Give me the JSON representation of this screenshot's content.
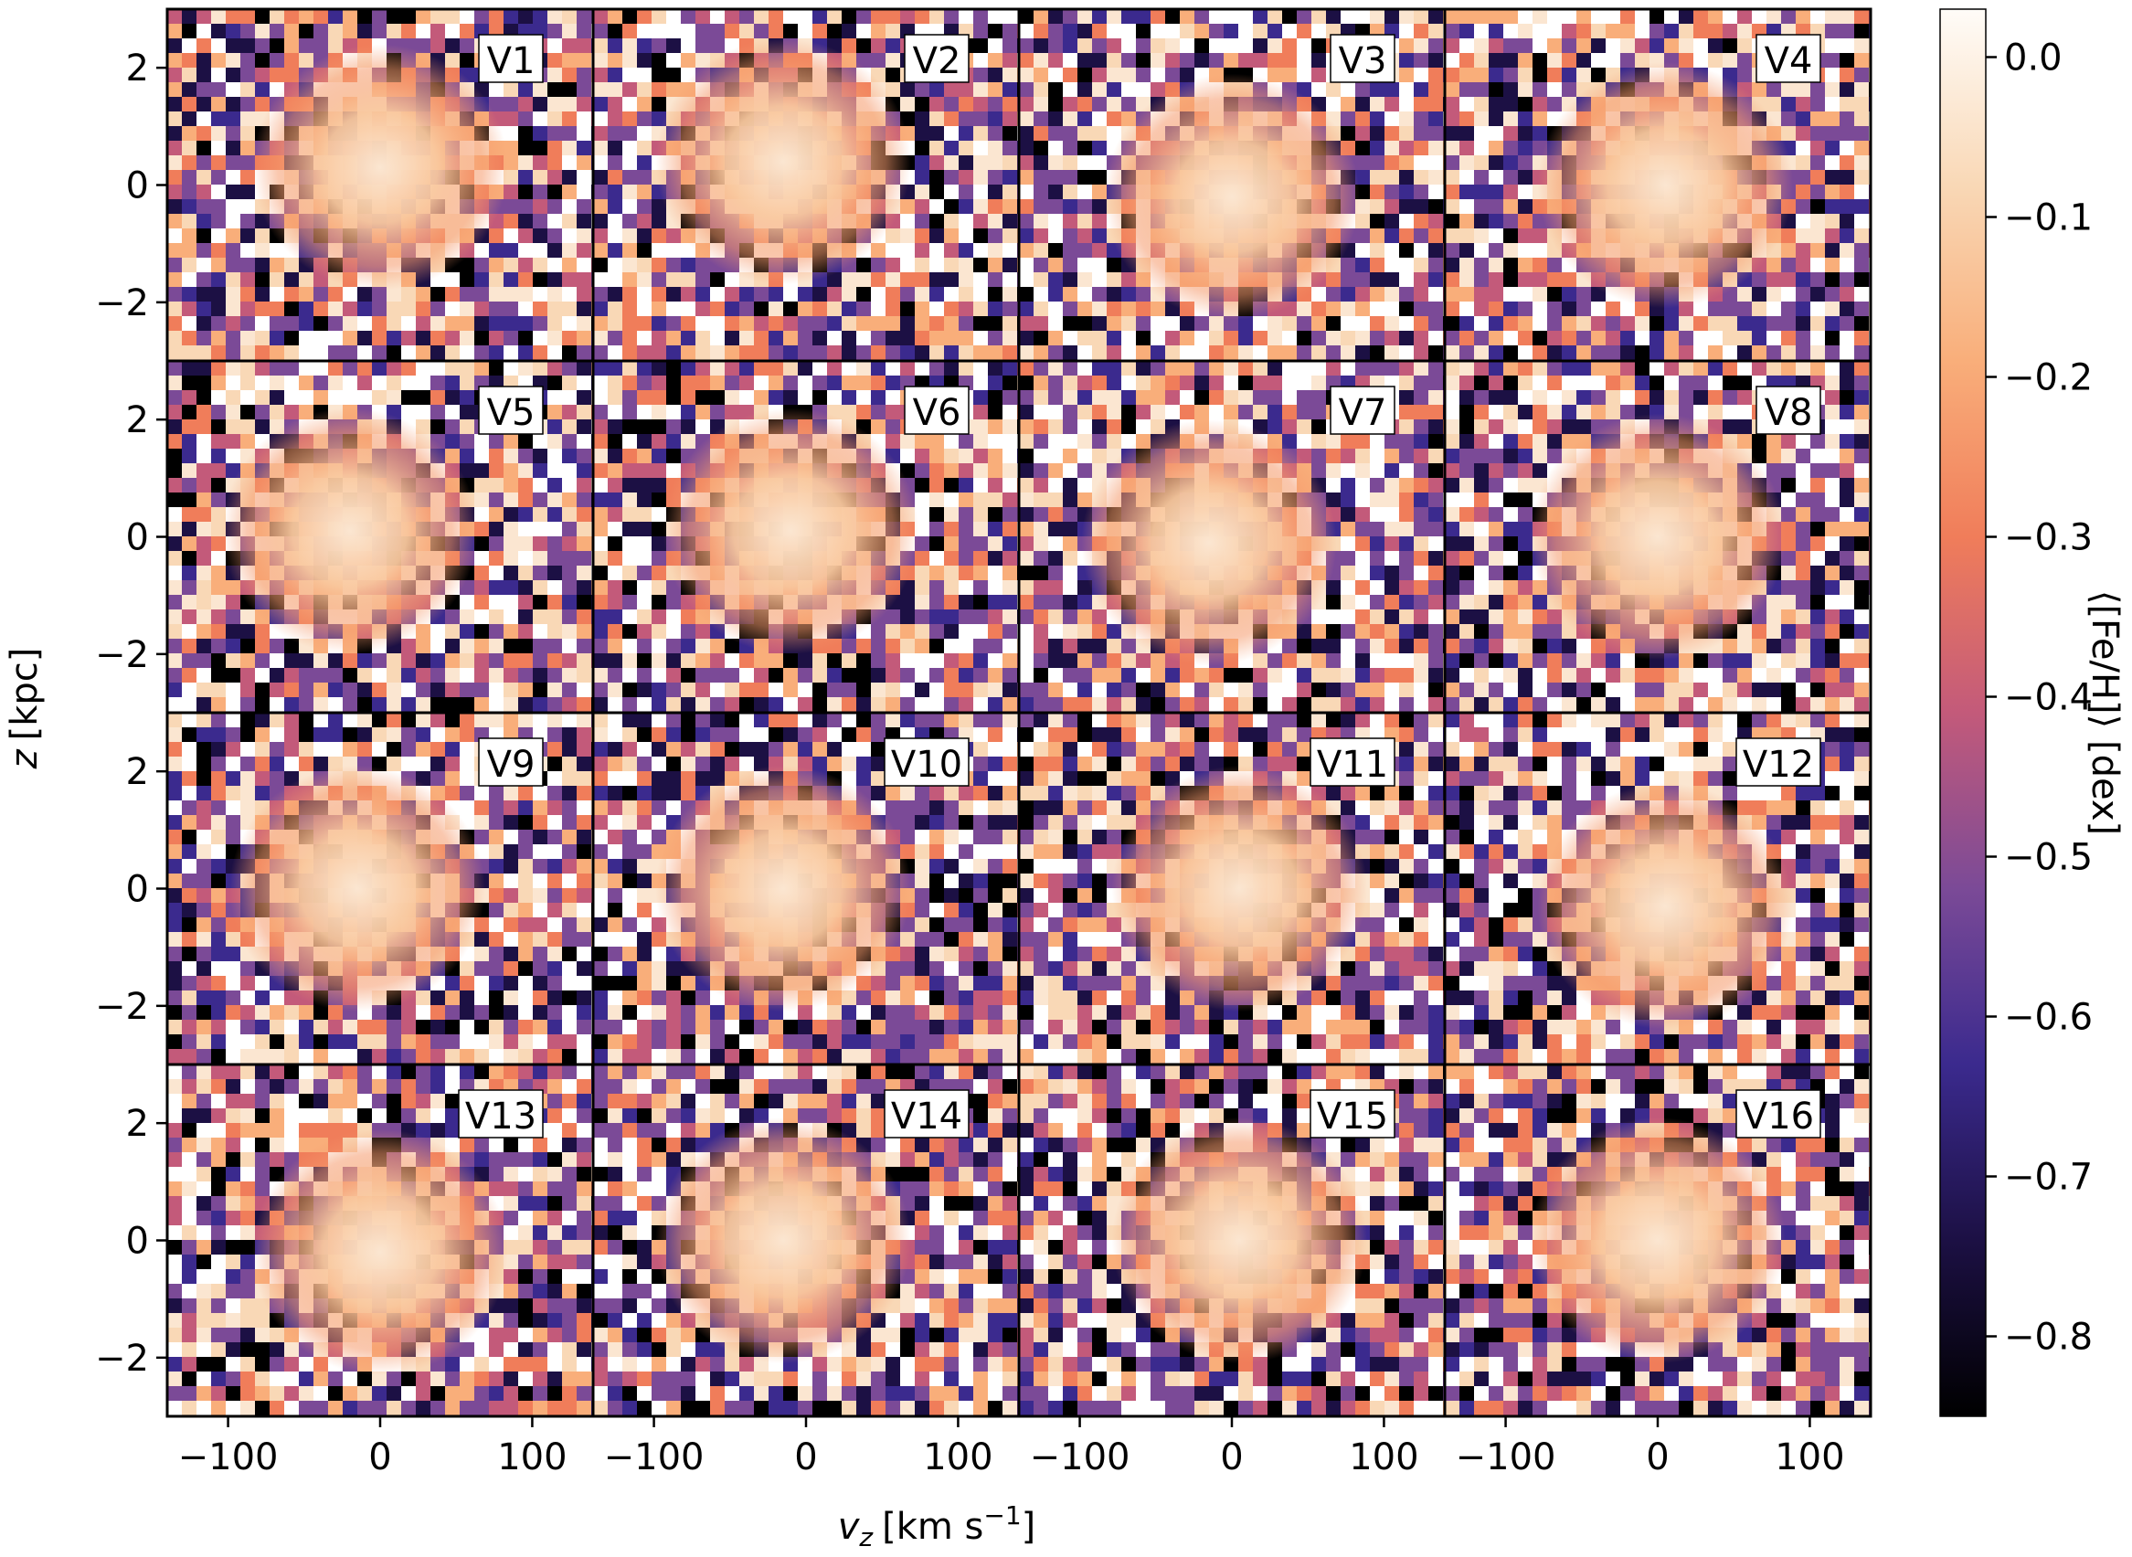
{
  "chart_data": {
    "type": "heatmap",
    "description_grid": "4x4 panels of binned mean metallicity in the (v_z, z) plane",
    "panels": [
      "V1",
      "V2",
      "V3",
      "V4",
      "V5",
      "V6",
      "V7",
      "V8",
      "V9",
      "V10",
      "V11",
      "V12",
      "V13",
      "V14",
      "V15",
      "V16"
    ],
    "panel_centers_vz": [
      0,
      -15,
      0,
      5,
      -20,
      -10,
      -15,
      0,
      -15,
      -15,
      5,
      5,
      0,
      -15,
      5,
      0
    ],
    "panel_centers_z": [
      0.3,
      0.4,
      -0.2,
      0.0,
      0.1,
      0.1,
      -0.1,
      0.0,
      0.0,
      0.0,
      0.0,
      -0.3,
      -0.2,
      0.0,
      0.0,
      0.0
    ],
    "xlabel_main": "v",
    "xlabel_sub": "z",
    "xlabel_unit": "[km s",
    "xlabel_exp": "−1",
    "xlabel_close": "]",
    "ylabel_main": "z",
    "ylabel_unit": "[kpc]",
    "x_ticks": [
      -100,
      0,
      100
    ],
    "x_tick_labels": [
      "−100",
      "0",
      "100"
    ],
    "y_ticks": [
      -2,
      0,
      2
    ],
    "y_tick_labels": [
      "−2",
      "0",
      "2"
    ],
    "xlim": [
      -140,
      140
    ],
    "ylim": [
      -3,
      3
    ],
    "colorbar": {
      "label": "⟨[Fe/H]⟩ [dex]",
      "range": [
        -0.85,
        0.03
      ],
      "ticks": [
        0.0,
        -0.1,
        -0.2,
        -0.3,
        -0.4,
        -0.5,
        -0.6,
        -0.7,
        -0.8
      ],
      "tick_labels": [
        "0.0",
        "−0.1",
        "−0.2",
        "−0.3",
        "−0.4",
        "−0.5",
        "−0.6",
        "−0.7",
        "−0.8"
      ],
      "colormap": "magma-like",
      "colors": [
        "#000000",
        "#1c1044",
        "#3b2a8e",
        "#7b4a97",
        "#c35a7a",
        "#f07d5a",
        "#f9ae7a",
        "#f9d8b6",
        "#fffcf8"
      ]
    },
    "grid": false,
    "legend": "none"
  }
}
